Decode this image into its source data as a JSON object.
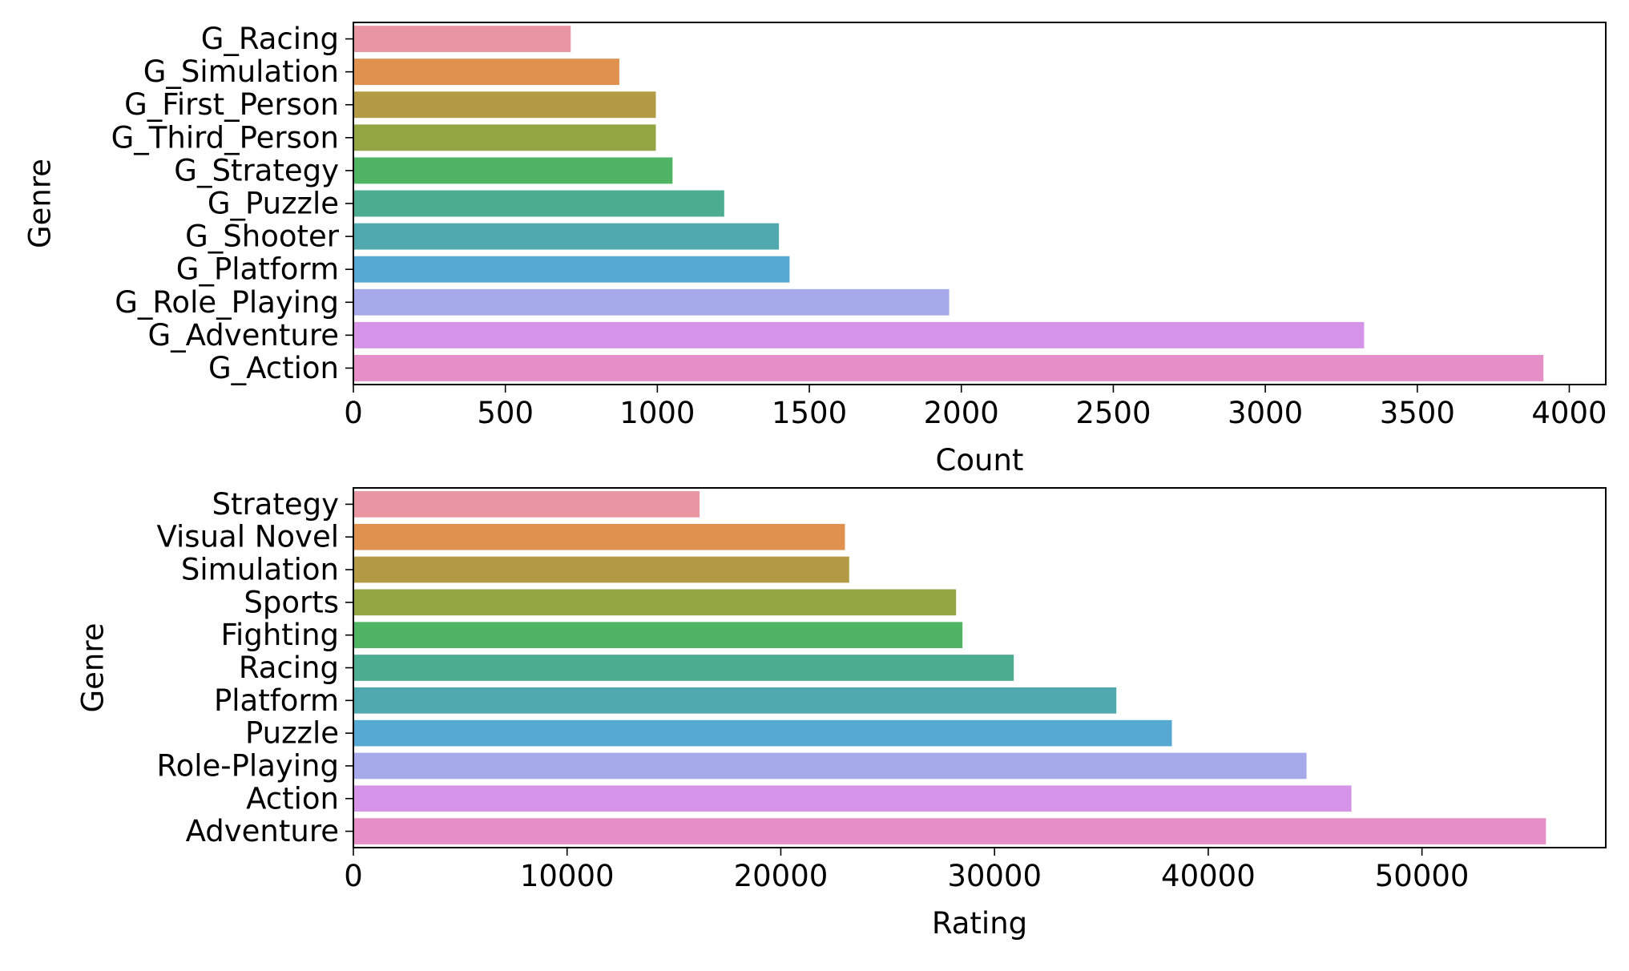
{
  "colors": {
    "palette": [
      "#e995a2",
      "#e0914f",
      "#b39b45",
      "#93a443",
      "#4fb463",
      "#4cad91",
      "#4fa9ae",
      "#55a9d3",
      "#a6a9ea",
      "#d694e8",
      "#e68ec7"
    ],
    "axis": "#000000",
    "background": "#ffffff"
  },
  "chart_data": [
    {
      "type": "bar",
      "orientation": "horizontal",
      "categories": [
        "G_Racing",
        "G_Simulation",
        "G_First_Person",
        "G_Third_Person",
        "G_Strategy",
        "G_Puzzle",
        "G_Shooter",
        "G_Platform",
        "G_Role_Playing",
        "G_Adventure",
        "G_Action"
      ],
      "values": [
        715,
        875,
        995,
        995,
        1050,
        1220,
        1400,
        1435,
        1960,
        3325,
        3915
      ],
      "xlabel": "Count",
      "ylabel": "Genre",
      "xlim": [
        0,
        4120
      ],
      "xticks": [
        0,
        500,
        1000,
        1500,
        2000,
        2500,
        3000,
        3500,
        4000
      ],
      "grid": false,
      "legend": "none"
    },
    {
      "type": "bar",
      "orientation": "horizontal",
      "categories": [
        "Strategy",
        "Visual Novel",
        "Simulation",
        "Sports",
        "Fighting",
        "Racing",
        "Platform",
        "Puzzle",
        "Role-Playing",
        "Action",
        "Adventure"
      ],
      "values": [
        16200,
        23000,
        23200,
        28200,
        28500,
        30900,
        35700,
        38300,
        44600,
        46700,
        55800
      ],
      "xlabel": "Rating",
      "ylabel": "Genre",
      "xlim": [
        0,
        58600
      ],
      "xticks": [
        0,
        10000,
        20000,
        30000,
        40000,
        50000
      ],
      "grid": false,
      "legend": "none"
    }
  ]
}
